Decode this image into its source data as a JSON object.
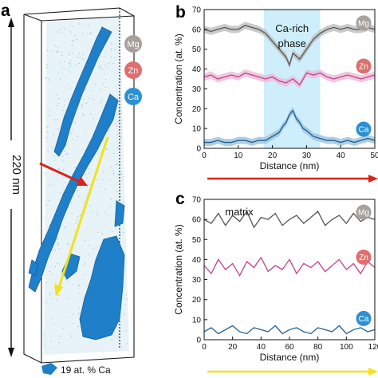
{
  "panel_a": {
    "letter": "a",
    "scale_label": "220 nm",
    "legend_label": "19 at. % Ca",
    "colors": {
      "isosurface": "#1f7fc9",
      "cloud": "#6fb4da",
      "red_arrow": "#d9241c",
      "yellow_arrow": "#f2e21a"
    }
  },
  "chart_data": [
    {
      "id": "b",
      "type": "line",
      "panel_letter": "b",
      "xlabel": "Distance (nm)",
      "ylabel": "Concentration (at. %)",
      "xlim": [
        0,
        50
      ],
      "ylim": [
        0,
        70
      ],
      "xticks": [
        "0",
        "10",
        "20",
        "30",
        "40",
        "50"
      ],
      "yticks": [
        "0",
        "10",
        "20",
        "30",
        "40",
        "50",
        "60",
        "70"
      ],
      "grid": false,
      "shaded_region": {
        "x": [
          17.5,
          34
        ],
        "color": "#cdeefa"
      },
      "annotation": [
        "Ca-rich",
        "phase"
      ],
      "arrow_color": "#d9241c",
      "series": [
        {
          "name": "Mg",
          "color": "#555555",
          "band": "#bdbdbd",
          "badge": "#a7a09b",
          "x": [
            0,
            2,
            4,
            6,
            8,
            10,
            12,
            14,
            16,
            18,
            20,
            22,
            24,
            25,
            26,
            28,
            30,
            32,
            34,
            36,
            38,
            40,
            42,
            44,
            46,
            48,
            50
          ],
          "y": [
            60,
            59,
            60,
            61,
            60,
            60,
            62,
            61,
            60,
            58,
            54,
            50,
            46,
            42,
            48,
            45,
            50,
            55,
            58,
            60,
            61,
            60,
            61,
            60,
            60,
            61,
            60
          ]
        },
        {
          "name": "Zn",
          "color": "#c2418f",
          "band": "#ecbad6",
          "badge": "#de6f6f",
          "x": [
            0,
            2,
            4,
            6,
            8,
            10,
            12,
            14,
            16,
            18,
            20,
            22,
            24,
            26,
            28,
            30,
            32,
            34,
            36,
            38,
            40,
            42,
            44,
            46,
            48,
            50
          ],
          "y": [
            36,
            37,
            35,
            36,
            37,
            36,
            38,
            37,
            36,
            35,
            36,
            34,
            33,
            35,
            32,
            38,
            37,
            38,
            36,
            35,
            36,
            37,
            36,
            35,
            36,
            37
          ]
        },
        {
          "name": "Ca",
          "color": "#1a5e8f",
          "band": "#9cc3dc",
          "badge": "#2c91d3",
          "x": [
            0,
            2,
            4,
            6,
            8,
            10,
            12,
            14,
            16,
            18,
            20,
            22,
            23,
            24,
            25,
            26,
            27,
            28,
            29,
            30,
            32,
            34,
            36,
            38,
            40,
            42,
            44,
            46,
            48,
            50
          ],
          "y": [
            3,
            3,
            4,
            3,
            3,
            4,
            4,
            3,
            4,
            4,
            6,
            8,
            11,
            13,
            17,
            19,
            15,
            13,
            10,
            9,
            6,
            5,
            4,
            4,
            3,
            4,
            3,
            4,
            5,
            4
          ]
        }
      ]
    },
    {
      "id": "c",
      "type": "line",
      "panel_letter": "c",
      "xlabel": "Distance (nm)",
      "ylabel": "Concentration (at. %)",
      "xlim": [
        0,
        120
      ],
      "ylim": [
        0,
        70
      ],
      "xticks": [
        "0",
        "20",
        "40",
        "60",
        "80",
        "100",
        "120"
      ],
      "yticks": [
        "0",
        "10",
        "20",
        "30",
        "40",
        "50",
        "60",
        "70"
      ],
      "grid": false,
      "annotation": [
        "matrix"
      ],
      "arrow_color": "#f2e21a",
      "series": [
        {
          "name": "Mg",
          "color": "#555555",
          "badge": "#a7a09b",
          "x": [
            0,
            5,
            10,
            15,
            20,
            25,
            30,
            35,
            40,
            45,
            50,
            55,
            60,
            65,
            70,
            75,
            80,
            85,
            90,
            95,
            100,
            105,
            110,
            115,
            120
          ],
          "y": [
            60,
            58,
            63,
            57,
            62,
            59,
            64,
            56,
            61,
            60,
            63,
            57,
            60,
            62,
            58,
            61,
            64,
            57,
            60,
            62,
            58,
            63,
            59,
            61,
            60
          ]
        },
        {
          "name": "Zn",
          "color": "#c2418f",
          "badge": "#de6f6f",
          "x": [
            0,
            5,
            10,
            15,
            20,
            25,
            30,
            35,
            40,
            45,
            50,
            55,
            60,
            65,
            70,
            75,
            80,
            85,
            90,
            95,
            100,
            105,
            110,
            115,
            120
          ],
          "y": [
            37,
            33,
            40,
            35,
            38,
            32,
            39,
            36,
            41,
            34,
            37,
            35,
            40,
            33,
            38,
            36,
            39,
            34,
            37,
            40,
            35,
            38,
            33,
            39,
            36
          ]
        },
        {
          "name": "Ca",
          "color": "#1a5e8f",
          "badge": "#2c91d3",
          "x": [
            0,
            5,
            10,
            15,
            20,
            25,
            30,
            35,
            40,
            45,
            50,
            55,
            60,
            65,
            70,
            75,
            80,
            85,
            90,
            95,
            100,
            105,
            110,
            115,
            120
          ],
          "y": [
            4,
            6,
            3,
            5,
            7,
            4,
            3,
            6,
            5,
            4,
            7,
            3,
            5,
            6,
            4,
            3,
            6,
            5,
            4,
            7,
            3,
            5,
            6,
            4,
            5
          ]
        }
      ]
    }
  ]
}
